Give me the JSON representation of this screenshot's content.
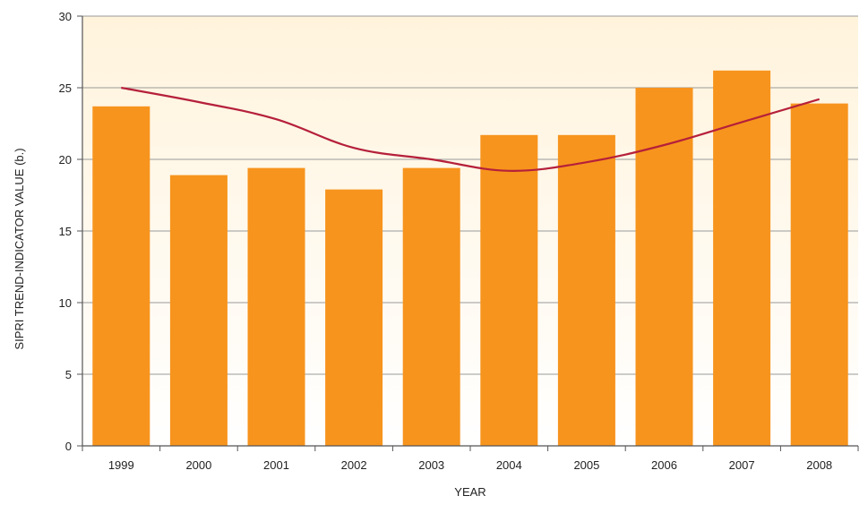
{
  "chart_data": {
    "type": "bar",
    "title": "",
    "xlabel": "YEAR",
    "ylabel": "SIPRI TREND-INDICATOR VALUE (b.)",
    "categories": [
      "1999",
      "2000",
      "2001",
      "2002",
      "2003",
      "2004",
      "2005",
      "2006",
      "2007",
      "2008"
    ],
    "series": [
      {
        "type": "bar",
        "values": [
          23.7,
          18.9,
          19.4,
          17.9,
          19.4,
          21.7,
          21.7,
          25.0,
          26.2,
          23.9
        ],
        "color": "#f7941d"
      },
      {
        "type": "line",
        "values": [
          25.0,
          24.0,
          22.8,
          20.8,
          20.0,
          19.2,
          19.8,
          21.0,
          22.6,
          24.2
        ],
        "color": "#b5203a"
      }
    ],
    "ylim": [
      0,
      30
    ],
    "yticks": [
      "0",
      "5",
      "10",
      "15",
      "20",
      "25",
      "30"
    ],
    "grid": true,
    "background_gradient": [
      "#fff3dc",
      "#ffffff"
    ]
  }
}
